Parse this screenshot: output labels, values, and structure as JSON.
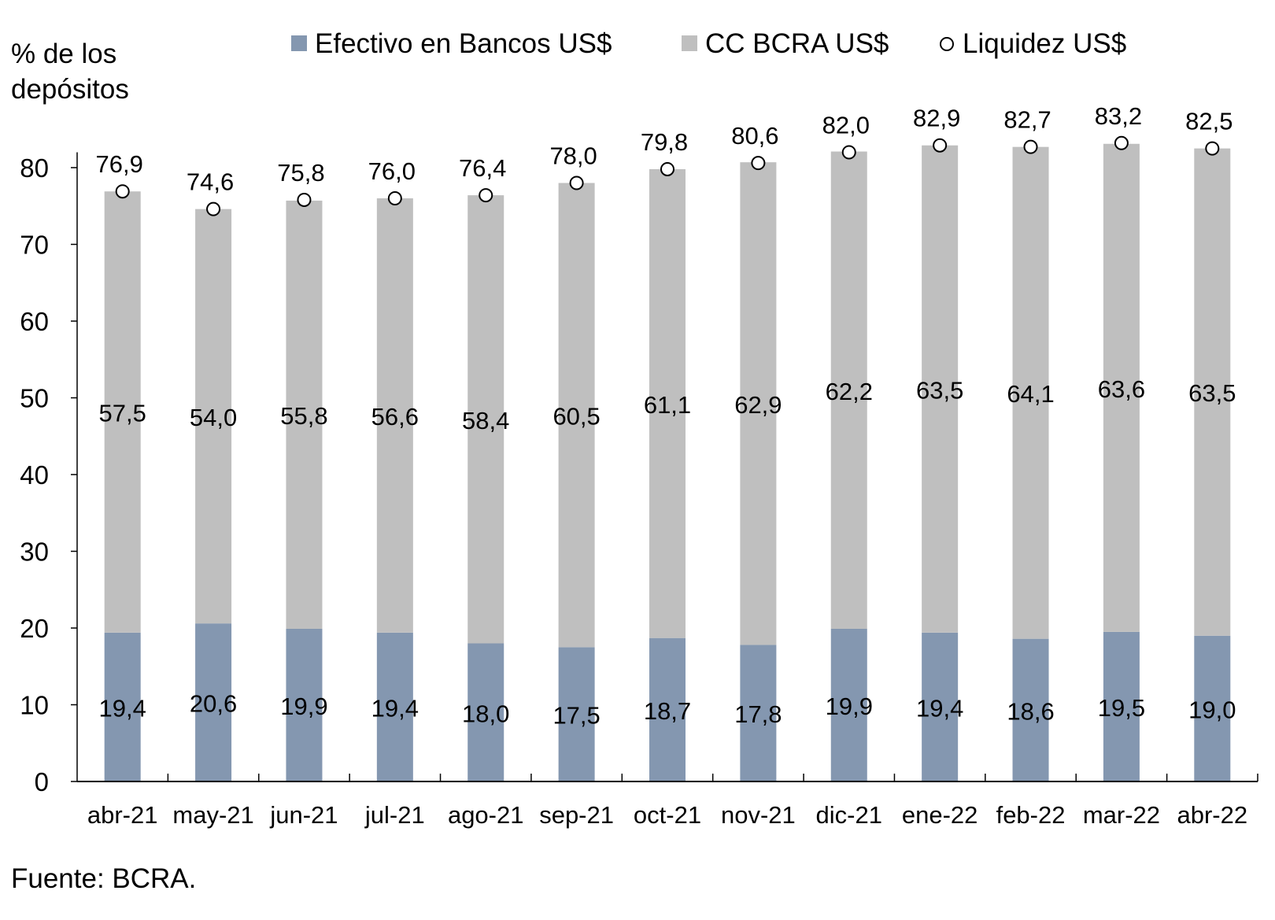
{
  "chart_data": {
    "type": "bar",
    "stacked": true,
    "ylabel": "% de los depósitos",
    "ylim": [
      0,
      85
    ],
    "yticks": [
      0,
      10,
      20,
      30,
      40,
      50,
      60,
      70,
      80
    ],
    "grid": false,
    "legend_placement": "top",
    "source": "Fuente: BCRA.",
    "categories": [
      "abr-21",
      "may-21",
      "jun-21",
      "jul-21",
      "ago-21",
      "sep-21",
      "oct-21",
      "nov-21",
      "dic-21",
      "ene-22",
      "feb-22",
      "mar-22",
      "abr-22"
    ],
    "series": [
      {
        "name": "Efectivo en Bancos US$",
        "kind": "bar",
        "color": "#8497b0",
        "values": [
          19.4,
          20.6,
          19.9,
          19.4,
          18.0,
          17.5,
          18.7,
          17.8,
          19.9,
          19.4,
          18.6,
          19.5,
          19.0
        ]
      },
      {
        "name": "CC BCRA US$",
        "kind": "bar",
        "color": "#bfbfbf",
        "values": [
          57.5,
          54.0,
          55.8,
          56.6,
          58.4,
          60.5,
          61.1,
          62.9,
          62.2,
          63.5,
          64.1,
          63.6,
          63.5
        ]
      },
      {
        "name": "Liquidez US$",
        "kind": "marker",
        "color": "#ffffff",
        "values": [
          76.9,
          74.6,
          75.8,
          76.0,
          76.4,
          78.0,
          79.8,
          80.6,
          82.0,
          82.9,
          82.7,
          83.2,
          82.5
        ]
      }
    ]
  }
}
